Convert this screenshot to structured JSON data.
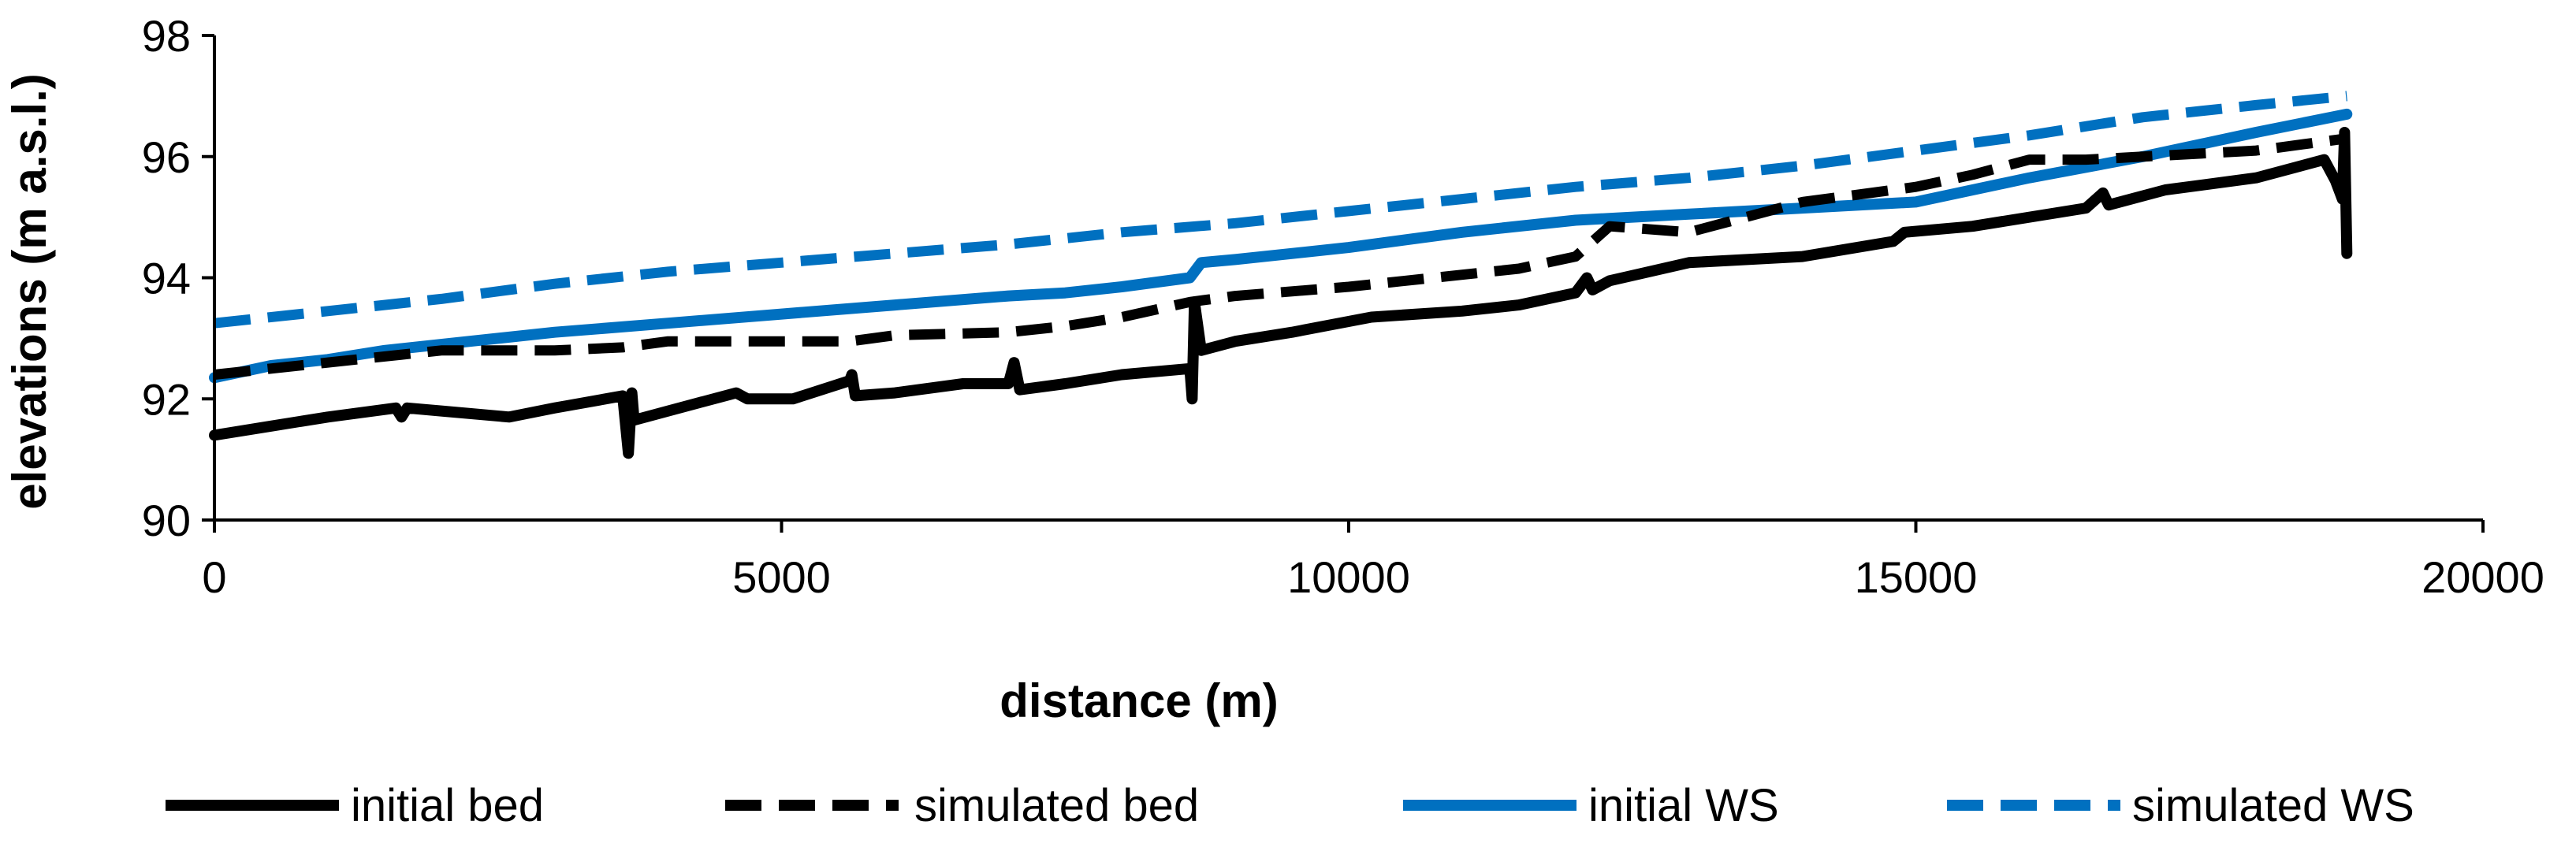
{
  "chart_data": {
    "type": "line",
    "title": "",
    "xlabel": "distance (m)",
    "ylabel": "elevations (m a.s.l.)",
    "xlim": [
      0,
      20000
    ],
    "ylim": [
      90,
      98
    ],
    "x_ticks": [
      0,
      5000,
      10000,
      15000,
      20000
    ],
    "y_ticks": [
      90,
      92,
      94,
      96,
      98
    ],
    "grid": false,
    "legend_position": "bottom",
    "series": [
      {
        "name": "initial bed",
        "color": "#000000",
        "dash": "solid",
        "x": [
          0,
          500,
          1000,
          1600,
          1650,
          1700,
          2000,
          2600,
          3000,
          3600,
          3650,
          3680,
          3700,
          4000,
          4600,
          4700,
          5100,
          5600,
          5620,
          5650,
          6000,
          6600,
          7000,
          7050,
          7100,
          7500,
          8000,
          8600,
          8620,
          8640,
          8700,
          9000,
          9500,
          10200,
          11000,
          11500,
          12000,
          12100,
          12150,
          12300,
          13000,
          14000,
          14800,
          14900,
          15500,
          16500,
          16650,
          16700,
          17200,
          18000,
          18600,
          18700,
          18760,
          18780,
          18800
        ],
        "y": [
          91.4,
          91.55,
          91.7,
          91.85,
          91.7,
          91.85,
          91.8,
          91.7,
          91.85,
          92.05,
          91.1,
          92.1,
          91.65,
          91.8,
          92.1,
          92.0,
          92.0,
          92.3,
          92.4,
          92.05,
          92.1,
          92.25,
          92.25,
          92.6,
          92.15,
          92.25,
          92.4,
          92.5,
          92.0,
          93.6,
          92.8,
          92.95,
          93.1,
          93.35,
          93.45,
          93.55,
          93.75,
          94.0,
          93.8,
          93.95,
          94.25,
          94.35,
          94.6,
          94.75,
          94.85,
          95.15,
          95.4,
          95.2,
          95.45,
          95.65,
          95.95,
          95.6,
          95.3,
          96.4,
          94.4
        ]
      },
      {
        "name": "simulated bed",
        "color": "#000000",
        "dash": "dashed",
        "x": [
          0,
          1000,
          2000,
          3000,
          3600,
          4000,
          5000,
          5600,
          6000,
          7000,
          7500,
          8000,
          8600,
          9000,
          10000,
          11000,
          11500,
          12000,
          12300,
          13000,
          14000,
          15000,
          15500,
          16000,
          16500,
          17000,
          18000,
          18800
        ],
        "y": [
          92.4,
          92.6,
          92.8,
          92.8,
          92.85,
          92.95,
          92.95,
          92.95,
          93.05,
          93.1,
          93.2,
          93.35,
          93.6,
          93.7,
          93.85,
          94.05,
          94.15,
          94.35,
          94.85,
          94.75,
          95.25,
          95.5,
          95.7,
          95.95,
          95.95,
          96.0,
          96.1,
          96.3
        ]
      },
      {
        "name": "initial WS",
        "color": "#0070C0",
        "dash": "solid",
        "x": [
          0,
          500,
          1000,
          1500,
          2000,
          3000,
          4000,
          5000,
          6000,
          7000,
          7500,
          8000,
          8600,
          8700,
          9000,
          10000,
          11000,
          12000,
          13000,
          14000,
          15000,
          16000,
          17000,
          18000,
          18800
        ],
        "y": [
          92.35,
          92.55,
          92.65,
          92.8,
          92.9,
          93.1,
          93.25,
          93.4,
          93.55,
          93.7,
          93.75,
          93.85,
          94.0,
          94.25,
          94.3,
          94.5,
          94.75,
          94.95,
          95.05,
          95.15,
          95.25,
          95.65,
          96.0,
          96.4,
          96.7
        ]
      },
      {
        "name": "simulated WS",
        "color": "#0070C0",
        "dash": "dashed",
        "x": [
          0,
          1000,
          2000,
          3000,
          4000,
          5000,
          6000,
          7000,
          8000,
          9000,
          10000,
          11000,
          12000,
          13000,
          14000,
          15000,
          16000,
          17000,
          18000,
          18800
        ],
        "y": [
          93.25,
          93.45,
          93.65,
          93.9,
          94.1,
          94.25,
          94.4,
          94.55,
          94.75,
          94.9,
          95.1,
          95.3,
          95.5,
          95.65,
          95.85,
          96.1,
          96.35,
          96.65,
          96.85,
          97.0
        ]
      }
    ]
  }
}
